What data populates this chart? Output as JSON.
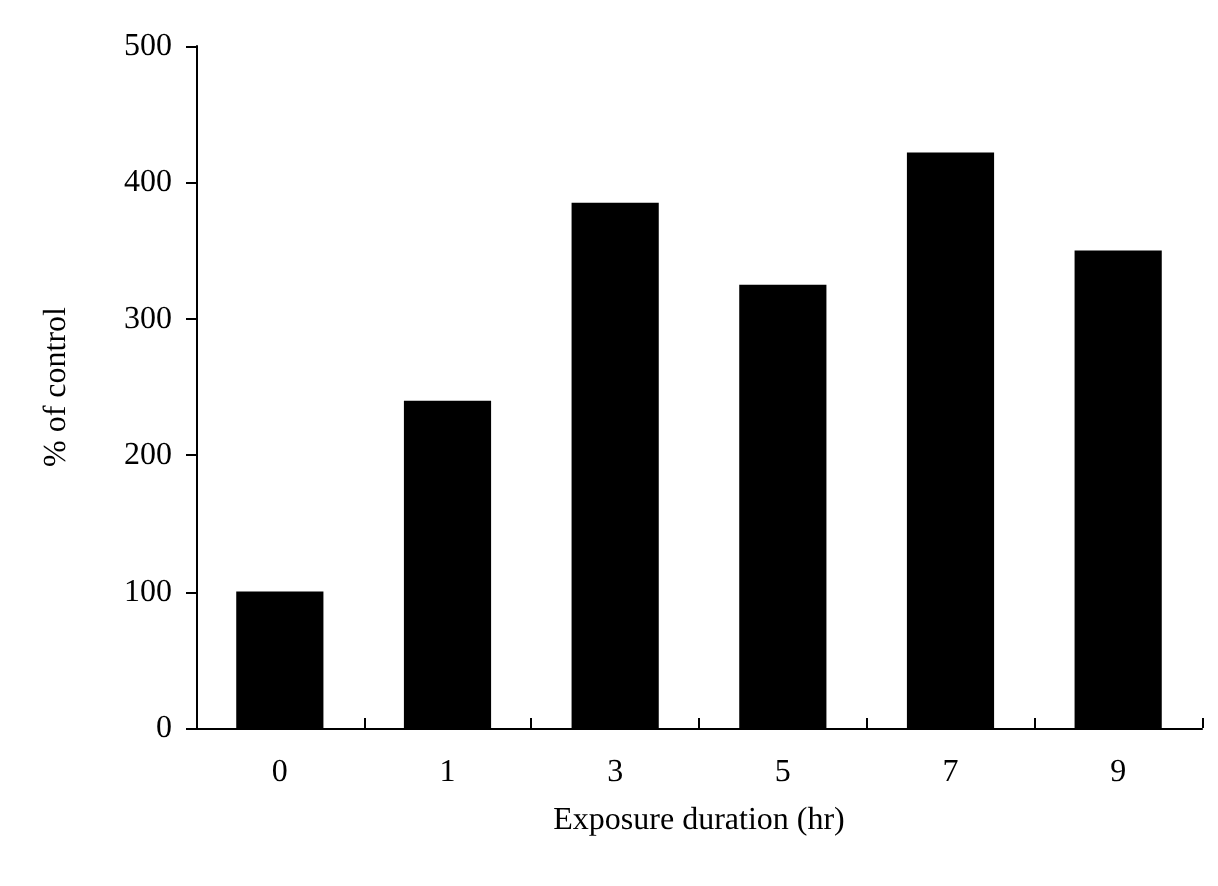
{
  "chart_data": {
    "type": "bar",
    "xlabel": "Exposure duration (hr)",
    "ylabel": "% of control",
    "categories": [
      "0",
      "1",
      "3",
      "5",
      "7",
      "9"
    ],
    "values": [
      100,
      240,
      385,
      325,
      422,
      350
    ],
    "color": "#000000",
    "ylim": [
      0,
      500
    ],
    "yticks": [
      0,
      100,
      200,
      300,
      400,
      500
    ],
    "grid": false
  }
}
